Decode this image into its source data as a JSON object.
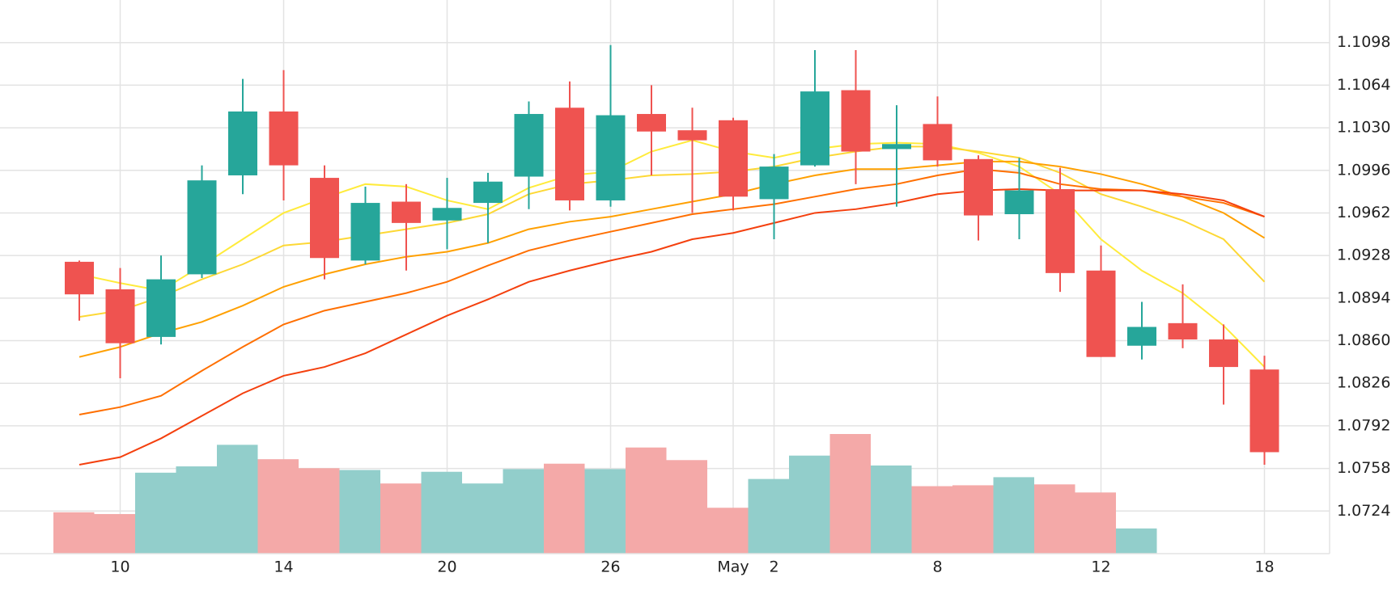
{
  "chart_data": {
    "type": "candlestick",
    "categories": [
      null,
      "10",
      null,
      null,
      null,
      "14",
      null,
      null,
      null,
      "20",
      null,
      null,
      null,
      "26",
      null,
      null,
      "May",
      "2",
      null,
      null,
      null,
      "8",
      null,
      null,
      null,
      "12",
      null,
      null,
      null,
      "18"
    ],
    "open": [
      1.0923,
      1.0901,
      1.0863,
      1.0913,
      1.0992,
      1.1043,
      1.099,
      1.0924,
      1.0971,
      1.0956,
      1.097,
      1.0991,
      1.1046,
      1.0972,
      1.1041,
      1.1028,
      1.1036,
      1.0973,
      1.1,
      1.106,
      1.1013,
      1.1033,
      1.1005,
      1.0961,
      1.0981,
      1.0916,
      1.0856,
      1.0874,
      1.0861,
      1.0837
    ],
    "high": [
      1.0924,
      1.0918,
      1.0928,
      1.1,
      1.1069,
      1.1076,
      1.1,
      1.0983,
      1.0985,
      1.099,
      1.0994,
      1.1051,
      1.1067,
      1.1096,
      1.1064,
      1.1046,
      1.1038,
      1.1009,
      1.1092,
      1.1092,
      1.1048,
      1.1055,
      1.1008,
      1.1006,
      1.0998,
      1.0936,
      1.0891,
      1.0905,
      1.0873,
      1.0848
    ],
    "low": [
      1.0876,
      1.083,
      1.0857,
      1.091,
      1.0977,
      1.0972,
      1.0909,
      1.0921,
      1.0916,
      1.0933,
      1.0938,
      1.0965,
      1.0964,
      1.0967,
      1.0992,
      1.0962,
      1.0964,
      1.0941,
      1.0999,
      1.0985,
      1.0967,
      1.0999,
      1.094,
      1.0941,
      1.0899,
      1.0847,
      1.0845,
      1.0854,
      1.0809,
      1.0761
    ],
    "close": [
      1.0897,
      1.0858,
      1.0909,
      1.0988,
      1.1043,
      1.1,
      1.0926,
      1.097,
      1.0954,
      1.0966,
      1.0987,
      1.1041,
      1.0972,
      1.104,
      1.1027,
      1.102,
      1.0975,
      1.0999,
      1.1059,
      1.1011,
      1.1017,
      1.1004,
      1.096,
      1.098,
      1.0914,
      1.0847,
      1.0871,
      1.0861,
      1.0839,
      1.0771
    ],
    "volume": [
      46,
      44,
      90,
      97,
      121,
      105,
      95,
      93,
      78,
      91,
      78,
      94,
      100,
      94,
      118,
      104,
      51,
      83,
      109,
      133,
      98,
      75,
      76,
      85,
      77,
      68,
      28,
      null,
      null,
      null
    ],
    "up_color": "#26a69a",
    "down_color": "#ef5350",
    "volume_up_color": "#92cecb",
    "volume_down_color": "#f4a9a8",
    "series": [
      {
        "color": "#ffeb3b",
        "values": [
          1.0913,
          1.0906,
          1.09,
          1.092,
          1.0941,
          1.0962,
          1.0974,
          1.0985,
          1.0983,
          1.0972,
          1.0965,
          1.0982,
          1.0992,
          1.0995,
          1.1011,
          1.102,
          1.1011,
          1.1006,
          1.1013,
          1.1017,
          1.1018,
          1.1017,
          1.101,
          1.0999,
          1.0977,
          1.0941,
          1.0916,
          1.0898,
          1.0872,
          1.0839
        ]
      },
      {
        "color": "#fdd835",
        "values": [
          1.0879,
          1.0884,
          1.0895,
          1.0909,
          1.0921,
          1.0936,
          1.0939,
          1.0944,
          1.0949,
          1.0954,
          1.0961,
          1.0977,
          1.0985,
          1.0988,
          1.0992,
          1.0993,
          1.0995,
          1.0999,
          1.1006,
          1.1011,
          1.1015,
          1.1015,
          1.1011,
          1.1006,
          1.0994,
          1.0977,
          1.0967,
          1.0956,
          1.0941,
          1.0907
        ]
      },
      {
        "color": "#ffa000",
        "values": [
          1.0847,
          1.0855,
          1.0866,
          1.0875,
          1.0888,
          1.0903,
          1.0913,
          1.0921,
          1.0927,
          1.0931,
          1.0938,
          1.0949,
          1.0955,
          1.0959,
          1.0965,
          1.0971,
          1.0977,
          1.0985,
          1.0992,
          1.0997,
          1.0997,
          1.1,
          1.1003,
          1.1003,
          1.0999,
          1.0993,
          1.0985,
          1.0975,
          1.0962,
          1.0942
        ]
      },
      {
        "color": "#ff6f00",
        "values": [
          1.0801,
          1.0807,
          1.0816,
          1.0836,
          1.0855,
          1.0873,
          1.0884,
          1.0891,
          1.0898,
          1.0907,
          1.092,
          1.0932,
          1.094,
          1.0947,
          1.0954,
          1.0961,
          1.0965,
          1.0969,
          1.0975,
          1.0981,
          1.0985,
          1.0992,
          1.0997,
          1.0994,
          1.0985,
          1.0981,
          1.098,
          1.0975,
          1.097,
          1.0959
        ]
      },
      {
        "color": "#f4400e",
        "values": [
          1.0761,
          1.0767,
          1.0782,
          1.08,
          1.0818,
          1.0832,
          1.0839,
          1.085,
          1.0865,
          1.088,
          1.0893,
          1.0907,
          1.0916,
          1.0924,
          1.0931,
          1.0941,
          1.0946,
          1.0954,
          1.0962,
          1.0965,
          1.097,
          1.0977,
          1.098,
          1.0981,
          1.098,
          1.098,
          1.098,
          1.0977,
          1.0972,
          1.0959
        ]
      }
    ],
    "ylim": [
      1.069,
      1.1132
    ],
    "yticks": [
      1.0724,
      1.0758,
      1.0792,
      1.0826,
      {
        "value": 1.086,
        "label": "1.0860"
      },
      1.0894,
      1.0928,
      1.0962,
      1.0996,
      {
        "value": 1.103,
        "label": "1.1030"
      },
      1.1064,
      1.1098
    ],
    "grid": true
  }
}
